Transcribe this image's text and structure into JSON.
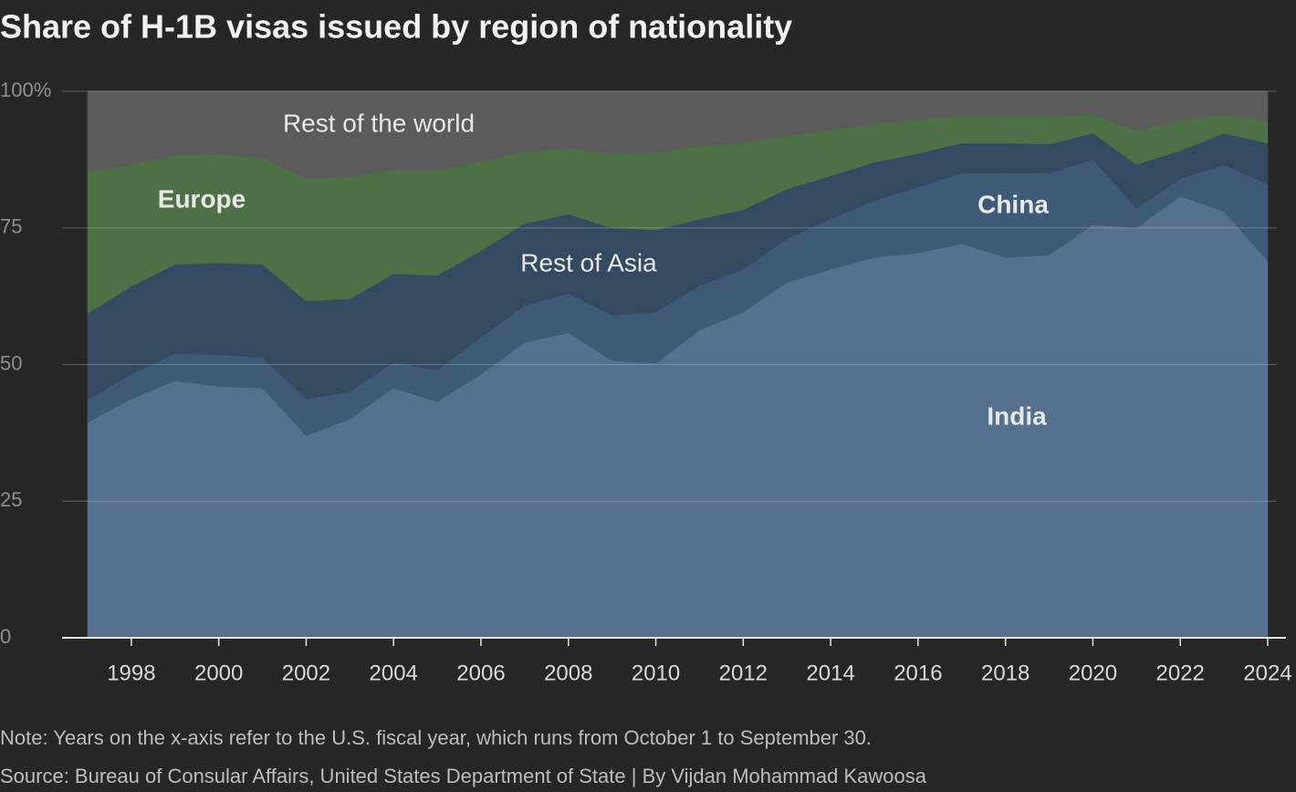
{
  "chart_data": {
    "type": "stacked-area",
    "title": "Share of H-1B visas issued by region of nationality",
    "note": "Note: Years on the x-axis refer to the U.S. fiscal year, which runs from October 1 to September 30.",
    "source": "Source: Bureau of Consular Affairs, United States Department of State | By Vijdan Mohammad Kawoosa",
    "x": [
      1997,
      1998,
      1999,
      2000,
      2001,
      2002,
      2003,
      2004,
      2005,
      2006,
      2007,
      2008,
      2009,
      2010,
      2011,
      2012,
      2013,
      2014,
      2015,
      2016,
      2017,
      2018,
      2019,
      2020,
      2021,
      2022,
      2023,
      2024
    ],
    "series": [
      {
        "name": "India",
        "color": "#56708f",
        "values": [
          39.4,
          43.7,
          47,
          46,
          45.7,
          37,
          40,
          45.7,
          43.2,
          48.2,
          54,
          55.8,
          50.7,
          50.2,
          56.3,
          59.6,
          65,
          67.4,
          69.6,
          70.4,
          72.1,
          69.6,
          70,
          75.6,
          75,
          80.8,
          78,
          68.9
        ]
      },
      {
        "name": "China",
        "color": "#3e5a77",
        "values": [
          4.2,
          4.5,
          5.0,
          5.8,
          5.6,
          6.7,
          5.0,
          4.7,
          5.8,
          6.8,
          6.8,
          7.2,
          8.3,
          9.4,
          8.1,
          7.8,
          8.0,
          9.2,
          10.4,
          12.1,
          12.9,
          15.5,
          15.0,
          11.9,
          3.6,
          3.2,
          8.5,
          14.1
        ]
      },
      {
        "name": "Rest of Asia",
        "color": "#344a60",
        "values": [
          15.7,
          16.1,
          16.3,
          16.8,
          17.0,
          17.9,
          17.0,
          16.2,
          17.3,
          15.8,
          15.0,
          14.5,
          16.0,
          15.0,
          12.2,
          10.9,
          9.1,
          7.9,
          7.0,
          6.1,
          5.5,
          5.4,
          5.3,
          4.8,
          8.0,
          5.1,
          5.8,
          7.5
        ]
      },
      {
        "name": "Europe",
        "color": "#4e7046",
        "values": [
          26.0,
          22.3,
          20.0,
          19.9,
          19.5,
          22.4,
          22.3,
          19.0,
          19.3,
          16.3,
          13.2,
          12.1,
          13.6,
          14.2,
          13.4,
          12.2,
          9.7,
          8.5,
          7.0,
          6.2,
          5.0,
          4.8,
          5.0,
          3.5,
          6.2,
          5.7,
          3.4,
          4.0
        ]
      },
      {
        "name": "Rest of the world",
        "color": "#5b5b5b",
        "values": [
          14.7,
          13.4,
          11.7,
          11.5,
          12.2,
          16.0,
          15.7,
          14.4,
          14.4,
          12.9,
          11.0,
          10.4,
          11.4,
          11.2,
          10.0,
          9.5,
          8.2,
          7.0,
          6.0,
          5.2,
          4.5,
          4.7,
          4.7,
          4.2,
          7.2,
          5.2,
          4.3,
          5.5
        ]
      }
    ],
    "xlim": [
      1997,
      2024
    ],
    "xticks": [
      1998,
      2000,
      2002,
      2004,
      2006,
      2008,
      2010,
      2012,
      2014,
      2016,
      2018,
      2020,
      2022,
      2024
    ],
    "ylim": [
      0,
      100
    ],
    "yticks": [
      0,
      25,
      50,
      75,
      {
        "value": 100,
        "label": "100%"
      }
    ],
    "grid": true
  }
}
